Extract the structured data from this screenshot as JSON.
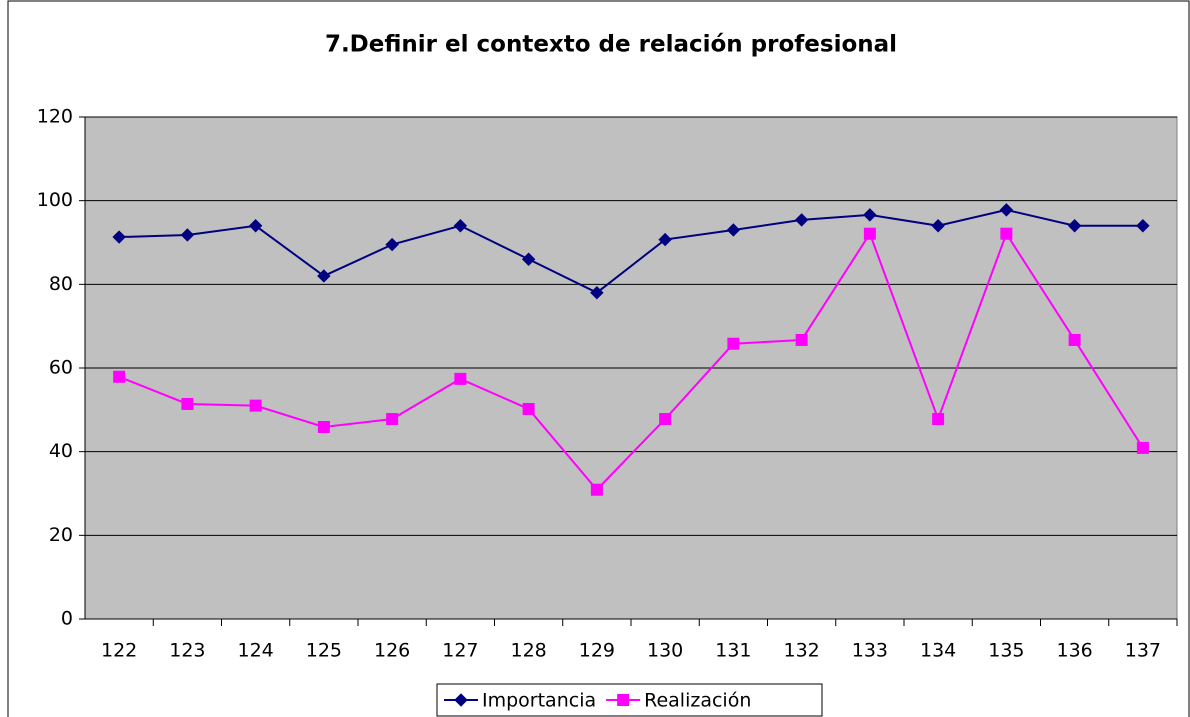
{
  "chart_data": {
    "type": "line",
    "title": "7.Definir el contexto de relación profesional",
    "categories": [
      "122",
      "123",
      "124",
      "125",
      "126",
      "127",
      "128",
      "129",
      "130",
      "131",
      "132",
      "133",
      "134",
      "135",
      "136",
      "137"
    ],
    "series": [
      {
        "name": "Importancia",
        "color": "#000080",
        "marker": "diamond",
        "values": [
          91.3,
          91.8,
          94,
          82,
          89.5,
          94,
          86,
          78,
          90.7,
          93,
          95.4,
          96.6,
          94,
          97.8,
          94,
          94
        ]
      },
      {
        "name": "Realización",
        "color": "#ff00ff",
        "marker": "square",
        "values": [
          57.9,
          51.4,
          51,
          45.9,
          47.8,
          57.4,
          50.2,
          30.9,
          47.8,
          65.8,
          66.7,
          92.1,
          47.8,
          92.1,
          66.7,
          40.9
        ]
      }
    ],
    "ylim": [
      0,
      120
    ],
    "yticks": [
      0,
      20,
      40,
      60,
      80,
      100,
      120
    ],
    "grid": true,
    "legend": "bottom"
  }
}
